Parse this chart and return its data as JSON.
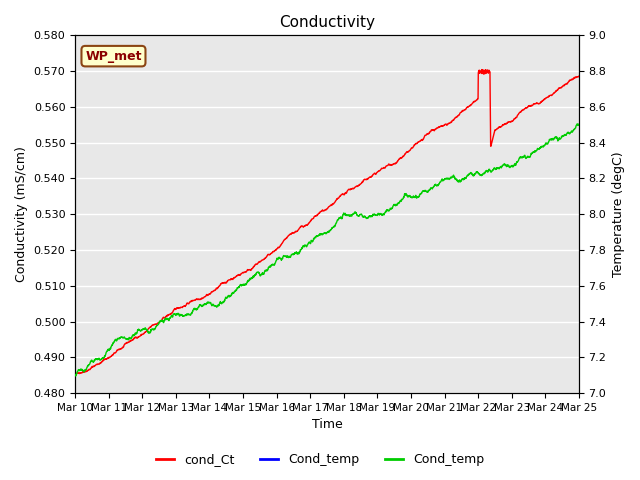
{
  "title": "Conductivity",
  "xlabel": "Time",
  "ylabel_left": "Conductivity (mS/cm)",
  "ylabel_right": "Temperature (degC)",
  "annotation_text": "WP_met",
  "annotation_box_facecolor": "#ffffcc",
  "annotation_box_edgecolor": "#8b4513",
  "annotation_text_color": "#8b0000",
  "xlim_days": [
    0,
    15
  ],
  "ylim_left": [
    0.48,
    0.58
  ],
  "ylim_right": [
    7.0,
    9.0
  ],
  "xtick_labels": [
    "Mar 10",
    "Mar 11",
    "Mar 12",
    "Mar 13",
    "Mar 14",
    "Mar 15",
    "Mar 16",
    "Mar 17",
    "Mar 18",
    "Mar 19",
    "Mar 20",
    "Mar 21",
    "Mar 22",
    "Mar 23",
    "Mar 24",
    "Mar 25"
  ],
  "legend_entries": [
    {
      "label": "cond_Ct",
      "color": "#ff0000"
    },
    {
      "label": "Cond_temp",
      "color": "#0000ff"
    },
    {
      "label": "Cond_temp",
      "color": "#00cc00"
    }
  ],
  "background_color": "#e8e8e8",
  "grid_color": "#ffffff",
  "line_width": 1.0
}
